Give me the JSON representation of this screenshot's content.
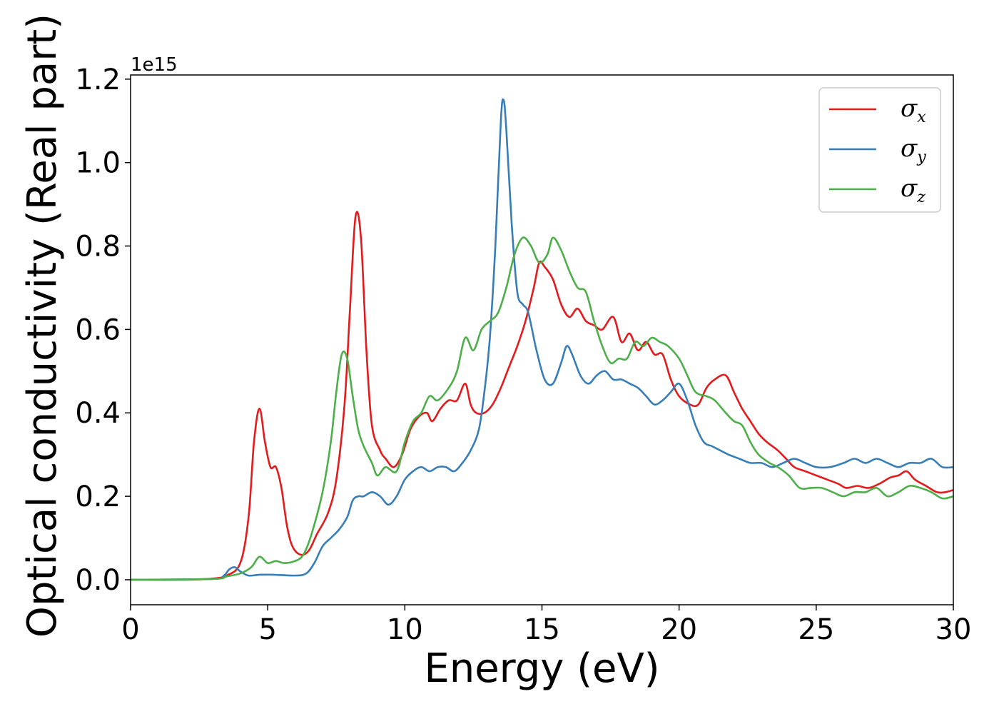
{
  "chart_data": {
    "type": "line",
    "title": "",
    "xlabel": "Energy (eV)",
    "ylabel": "Optical conductivity (Real part)",
    "y_offset_text": "1e15",
    "xlim": [
      0,
      30
    ],
    "ylim": [
      -0.06,
      1.21
    ],
    "x_ticks": [
      0,
      5,
      10,
      15,
      20,
      25,
      30
    ],
    "x_tick_labels": [
      "0",
      "5",
      "10",
      "15",
      "20",
      "25",
      "30"
    ],
    "y_ticks": [
      0.0,
      0.2,
      0.4,
      0.6,
      0.8,
      1.0,
      1.2
    ],
    "y_tick_labels": [
      "0.0",
      "0.2",
      "0.4",
      "0.6",
      "0.8",
      "1.0",
      "1.2"
    ],
    "grid": false,
    "legend_position": "top-right",
    "series": [
      {
        "name": "σx",
        "symbol": "σ",
        "subscript": "x",
        "color": "#e41a1c",
        "points": [
          [
            0,
            0
          ],
          [
            2,
            0
          ],
          [
            3,
            0.003
          ],
          [
            3.5,
            0.01
          ],
          [
            4,
            0.04
          ],
          [
            4.3,
            0.15
          ],
          [
            4.5,
            0.33
          ],
          [
            4.7,
            0.41
          ],
          [
            4.9,
            0.33
          ],
          [
            5.1,
            0.27
          ],
          [
            5.3,
            0.27
          ],
          [
            5.5,
            0.22
          ],
          [
            5.7,
            0.13
          ],
          [
            5.9,
            0.08
          ],
          [
            6.2,
            0.06
          ],
          [
            6.5,
            0.07
          ],
          [
            6.8,
            0.11
          ],
          [
            7.2,
            0.16
          ],
          [
            7.5,
            0.24
          ],
          [
            7.8,
            0.42
          ],
          [
            8.0,
            0.65
          ],
          [
            8.2,
            0.87
          ],
          [
            8.4,
            0.82
          ],
          [
            8.6,
            0.55
          ],
          [
            8.8,
            0.37
          ],
          [
            9.1,
            0.31
          ],
          [
            9.3,
            0.29
          ],
          [
            9.6,
            0.27
          ],
          [
            9.9,
            0.3
          ],
          [
            10.2,
            0.36
          ],
          [
            10.5,
            0.39
          ],
          [
            10.8,
            0.4
          ],
          [
            11.0,
            0.38
          ],
          [
            11.3,
            0.41
          ],
          [
            11.6,
            0.43
          ],
          [
            11.9,
            0.43
          ],
          [
            12.2,
            0.47
          ],
          [
            12.4,
            0.42
          ],
          [
            12.6,
            0.4
          ],
          [
            12.9,
            0.4
          ],
          [
            13.2,
            0.42
          ],
          [
            13.5,
            0.46
          ],
          [
            13.8,
            0.51
          ],
          [
            14.1,
            0.56
          ],
          [
            14.4,
            0.62
          ],
          [
            14.7,
            0.7
          ],
          [
            14.9,
            0.76
          ],
          [
            15.1,
            0.75
          ],
          [
            15.4,
            0.72
          ],
          [
            15.7,
            0.66
          ],
          [
            16.0,
            0.63
          ],
          [
            16.3,
            0.65
          ],
          [
            16.6,
            0.62
          ],
          [
            16.9,
            0.61
          ],
          [
            17.2,
            0.6
          ],
          [
            17.6,
            0.63
          ],
          [
            17.9,
            0.57
          ],
          [
            18.2,
            0.59
          ],
          [
            18.5,
            0.55
          ],
          [
            18.8,
            0.57
          ],
          [
            19.1,
            0.54
          ],
          [
            19.4,
            0.54
          ],
          [
            19.7,
            0.48
          ],
          [
            20.0,
            0.44
          ],
          [
            20.4,
            0.42
          ],
          [
            20.7,
            0.42
          ],
          [
            21.0,
            0.46
          ],
          [
            21.3,
            0.48
          ],
          [
            21.7,
            0.49
          ],
          [
            22.0,
            0.45
          ],
          [
            22.3,
            0.41
          ],
          [
            22.6,
            0.38
          ],
          [
            22.9,
            0.35
          ],
          [
            23.2,
            0.33
          ],
          [
            23.6,
            0.31
          ],
          [
            23.9,
            0.29
          ],
          [
            24.2,
            0.27
          ],
          [
            24.6,
            0.26
          ],
          [
            25.0,
            0.25
          ],
          [
            25.4,
            0.24
          ],
          [
            25.8,
            0.23
          ],
          [
            26.1,
            0.22
          ],
          [
            26.5,
            0.225
          ],
          [
            26.9,
            0.22
          ],
          [
            27.3,
            0.23
          ],
          [
            27.7,
            0.245
          ],
          [
            28.0,
            0.25
          ],
          [
            28.3,
            0.26
          ],
          [
            28.6,
            0.24
          ],
          [
            29.0,
            0.225
          ],
          [
            29.4,
            0.21
          ],
          [
            29.7,
            0.21
          ],
          [
            30.0,
            0.215
          ]
        ]
      },
      {
        "name": "σy",
        "symbol": "σ",
        "subscript": "y",
        "color": "#377eb8",
        "points": [
          [
            0,
            0
          ],
          [
            3.0,
            0.002
          ],
          [
            3.4,
            0.01
          ],
          [
            3.6,
            0.025
          ],
          [
            3.8,
            0.03
          ],
          [
            4.0,
            0.02
          ],
          [
            4.3,
            0.01
          ],
          [
            4.7,
            0.012
          ],
          [
            5.2,
            0.012
          ],
          [
            6.0,
            0.01
          ],
          [
            6.4,
            0.015
          ],
          [
            6.7,
            0.04
          ],
          [
            7.0,
            0.08
          ],
          [
            7.3,
            0.1
          ],
          [
            7.6,
            0.12
          ],
          [
            7.9,
            0.15
          ],
          [
            8.1,
            0.19
          ],
          [
            8.3,
            0.2
          ],
          [
            8.5,
            0.2
          ],
          [
            8.8,
            0.21
          ],
          [
            9.1,
            0.2
          ],
          [
            9.4,
            0.18
          ],
          [
            9.7,
            0.2
          ],
          [
            10.0,
            0.24
          ],
          [
            10.3,
            0.26
          ],
          [
            10.6,
            0.27
          ],
          [
            10.9,
            0.26
          ],
          [
            11.2,
            0.27
          ],
          [
            11.5,
            0.27
          ],
          [
            11.8,
            0.26
          ],
          [
            12.1,
            0.28
          ],
          [
            12.4,
            0.31
          ],
          [
            12.7,
            0.36
          ],
          [
            12.9,
            0.45
          ],
          [
            13.1,
            0.58
          ],
          [
            13.3,
            0.8
          ],
          [
            13.5,
            1.1
          ],
          [
            13.6,
            1.15
          ],
          [
            13.7,
            1.08
          ],
          [
            13.9,
            0.85
          ],
          [
            14.1,
            0.69
          ],
          [
            14.3,
            0.66
          ],
          [
            14.5,
            0.64
          ],
          [
            14.8,
            0.55
          ],
          [
            15.1,
            0.48
          ],
          [
            15.4,
            0.47
          ],
          [
            15.7,
            0.52
          ],
          [
            15.9,
            0.56
          ],
          [
            16.1,
            0.54
          ],
          [
            16.4,
            0.49
          ],
          [
            16.7,
            0.47
          ],
          [
            17.0,
            0.49
          ],
          [
            17.3,
            0.5
          ],
          [
            17.6,
            0.48
          ],
          [
            17.9,
            0.48
          ],
          [
            18.2,
            0.47
          ],
          [
            18.5,
            0.46
          ],
          [
            18.8,
            0.44
          ],
          [
            19.1,
            0.42
          ],
          [
            19.4,
            0.43
          ],
          [
            19.7,
            0.45
          ],
          [
            20.0,
            0.47
          ],
          [
            20.3,
            0.43
          ],
          [
            20.6,
            0.37
          ],
          [
            20.9,
            0.33
          ],
          [
            21.2,
            0.32
          ],
          [
            21.5,
            0.31
          ],
          [
            21.8,
            0.3
          ],
          [
            22.2,
            0.29
          ],
          [
            22.6,
            0.28
          ],
          [
            23.0,
            0.28
          ],
          [
            23.4,
            0.27
          ],
          [
            23.8,
            0.28
          ],
          [
            24.2,
            0.29
          ],
          [
            24.6,
            0.28
          ],
          [
            25.0,
            0.27
          ],
          [
            25.5,
            0.27
          ],
          [
            26.0,
            0.28
          ],
          [
            26.4,
            0.29
          ],
          [
            26.8,
            0.28
          ],
          [
            27.2,
            0.29
          ],
          [
            27.6,
            0.28
          ],
          [
            28.0,
            0.27
          ],
          [
            28.4,
            0.28
          ],
          [
            28.8,
            0.28
          ],
          [
            29.2,
            0.29
          ],
          [
            29.6,
            0.27
          ],
          [
            30.0,
            0.27
          ]
        ]
      },
      {
        "name": "σz",
        "symbol": "σ",
        "subscript": "z",
        "color": "#4daf4a",
        "points": [
          [
            0,
            0
          ],
          [
            3.0,
            0.002
          ],
          [
            3.5,
            0.008
          ],
          [
            4.0,
            0.015
          ],
          [
            4.4,
            0.03
          ],
          [
            4.7,
            0.055
          ],
          [
            5.0,
            0.04
          ],
          [
            5.3,
            0.045
          ],
          [
            5.6,
            0.04
          ],
          [
            6.0,
            0.045
          ],
          [
            6.3,
            0.06
          ],
          [
            6.6,
            0.11
          ],
          [
            7.0,
            0.21
          ],
          [
            7.3,
            0.33
          ],
          [
            7.5,
            0.45
          ],
          [
            7.7,
            0.54
          ],
          [
            7.9,
            0.53
          ],
          [
            8.1,
            0.44
          ],
          [
            8.3,
            0.36
          ],
          [
            8.5,
            0.32
          ],
          [
            8.8,
            0.28
          ],
          [
            9.0,
            0.25
          ],
          [
            9.3,
            0.27
          ],
          [
            9.7,
            0.26
          ],
          [
            10.0,
            0.33
          ],
          [
            10.3,
            0.38
          ],
          [
            10.6,
            0.4
          ],
          [
            10.9,
            0.44
          ],
          [
            11.2,
            0.43
          ],
          [
            11.6,
            0.46
          ],
          [
            11.9,
            0.5
          ],
          [
            12.2,
            0.58
          ],
          [
            12.5,
            0.55
          ],
          [
            12.8,
            0.6
          ],
          [
            13.1,
            0.62
          ],
          [
            13.4,
            0.64
          ],
          [
            13.7,
            0.7
          ],
          [
            14.0,
            0.78
          ],
          [
            14.3,
            0.82
          ],
          [
            14.6,
            0.8
          ],
          [
            14.9,
            0.76
          ],
          [
            15.2,
            0.78
          ],
          [
            15.4,
            0.82
          ],
          [
            15.7,
            0.79
          ],
          [
            16.0,
            0.74
          ],
          [
            16.3,
            0.7
          ],
          [
            16.6,
            0.69
          ],
          [
            16.9,
            0.62
          ],
          [
            17.2,
            0.56
          ],
          [
            17.5,
            0.52
          ],
          [
            17.8,
            0.53
          ],
          [
            18.1,
            0.53
          ],
          [
            18.4,
            0.57
          ],
          [
            18.7,
            0.56
          ],
          [
            19.0,
            0.58
          ],
          [
            19.3,
            0.57
          ],
          [
            19.6,
            0.56
          ],
          [
            20.0,
            0.53
          ],
          [
            20.3,
            0.49
          ],
          [
            20.6,
            0.45
          ],
          [
            21.0,
            0.44
          ],
          [
            21.3,
            0.43
          ],
          [
            21.7,
            0.4
          ],
          [
            22.0,
            0.38
          ],
          [
            22.3,
            0.37
          ],
          [
            22.6,
            0.33
          ],
          [
            22.9,
            0.3
          ],
          [
            23.3,
            0.28
          ],
          [
            23.6,
            0.27
          ],
          [
            24.0,
            0.25
          ],
          [
            24.4,
            0.22
          ],
          [
            24.8,
            0.22
          ],
          [
            25.2,
            0.22
          ],
          [
            25.6,
            0.21
          ],
          [
            26.0,
            0.2
          ],
          [
            26.4,
            0.21
          ],
          [
            26.8,
            0.21
          ],
          [
            27.2,
            0.22
          ],
          [
            27.6,
            0.2
          ],
          [
            28.0,
            0.21
          ],
          [
            28.4,
            0.225
          ],
          [
            28.8,
            0.22
          ],
          [
            29.2,
            0.21
          ],
          [
            29.6,
            0.195
          ],
          [
            30.0,
            0.2
          ]
        ]
      }
    ]
  }
}
